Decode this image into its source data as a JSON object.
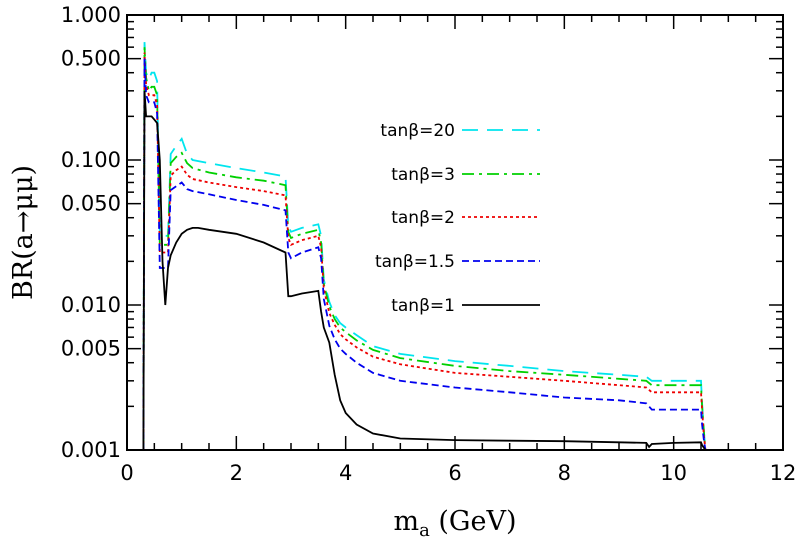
{
  "chart_data": {
    "type": "line",
    "xlabel": "m_a (GeV)",
    "xlabel_main": "m",
    "xlabel_sub": "a",
    "xlabel_unit": " (GeV)",
    "ylabel": "BR(a→μμ)",
    "xlim": [
      0,
      12
    ],
    "ylim": [
      0.001,
      1.0
    ],
    "yscale": "log",
    "grid": false,
    "legend_position": "upper-right",
    "x_ticks": [
      {
        "value": 0,
        "label": "0"
      },
      {
        "value": 2,
        "label": "2"
      },
      {
        "value": 4,
        "label": "4"
      },
      {
        "value": 6,
        "label": "6"
      },
      {
        "value": 8,
        "label": "8"
      },
      {
        "value": 10,
        "label": "10"
      },
      {
        "value": 12,
        "label": "12"
      }
    ],
    "y_ticks": [
      {
        "value": 0.001,
        "label": "0.001"
      },
      {
        "value": 0.005,
        "label": "0.005"
      },
      {
        "value": 0.01,
        "label": "0.010"
      },
      {
        "value": 0.05,
        "label": "0.050"
      },
      {
        "value": 0.1,
        "label": "0.100"
      },
      {
        "value": 0.5,
        "label": "0.500"
      },
      {
        "value": 1.0,
        "label": "1.000"
      }
    ],
    "series": [
      {
        "name": "tanβ=20",
        "color": "#00e5ee",
        "dash": "long-dash",
        "x": [
          0.3,
          0.32,
          0.35,
          0.4,
          0.45,
          0.5,
          0.55,
          0.6,
          0.7,
          0.75,
          0.8,
          0.9,
          1.0,
          1.1,
          1.2,
          1.5,
          2.0,
          2.5,
          2.9,
          2.95,
          3.0,
          3.2,
          3.5,
          3.55,
          3.6,
          3.7,
          3.8,
          3.9,
          4.0,
          4.2,
          4.5,
          5.0,
          6.0,
          7.0,
          8.0,
          9.0,
          9.5,
          9.6,
          10.0,
          10.4,
          10.5,
          10.52,
          10.55,
          10.58
        ],
        "y": [
          0.001,
          0.65,
          0.4,
          0.36,
          0.4,
          0.4,
          0.35,
          0.03,
          0.03,
          0.03,
          0.11,
          0.125,
          0.14,
          0.11,
          0.1,
          0.095,
          0.088,
          0.082,
          0.077,
          0.035,
          0.032,
          0.034,
          0.036,
          0.03,
          0.015,
          0.0105,
          0.0085,
          0.0075,
          0.007,
          0.0062,
          0.0052,
          0.0046,
          0.0041,
          0.0038,
          0.0035,
          0.0033,
          0.0032,
          0.003,
          0.003,
          0.003,
          0.003,
          0.0021,
          0.0014,
          0.001
        ]
      },
      {
        "name": "tanβ=3",
        "color": "#00d000",
        "dash": "dash-dot",
        "x": [
          0.3,
          0.32,
          0.35,
          0.4,
          0.45,
          0.5,
          0.55,
          0.6,
          0.7,
          0.75,
          0.8,
          0.9,
          1.0,
          1.1,
          1.2,
          1.5,
          2.0,
          2.5,
          2.9,
          2.95,
          3.0,
          3.2,
          3.5,
          3.55,
          3.6,
          3.7,
          3.8,
          3.9,
          4.0,
          4.2,
          4.5,
          5.0,
          6.0,
          7.0,
          8.0,
          9.0,
          9.5,
          9.6,
          10.0,
          10.4,
          10.5,
          10.52,
          10.55,
          10.58
        ],
        "y": [
          0.001,
          0.6,
          0.37,
          0.3,
          0.32,
          0.32,
          0.28,
          0.026,
          0.026,
          0.026,
          0.095,
          0.105,
          0.112,
          0.095,
          0.088,
          0.082,
          0.076,
          0.072,
          0.067,
          0.032,
          0.029,
          0.031,
          0.033,
          0.027,
          0.014,
          0.0098,
          0.008,
          0.007,
          0.0065,
          0.0057,
          0.0049,
          0.0043,
          0.0038,
          0.0035,
          0.0033,
          0.0031,
          0.003,
          0.0028,
          0.0028,
          0.0028,
          0.0028,
          0.002,
          0.0014,
          0.001
        ]
      },
      {
        "name": "tanβ=2",
        "color": "#ee0000",
        "dash": "dotted",
        "x": [
          0.3,
          0.32,
          0.35,
          0.4,
          0.45,
          0.5,
          0.55,
          0.6,
          0.7,
          0.75,
          0.8,
          0.9,
          1.0,
          1.1,
          1.2,
          1.5,
          2.0,
          2.5,
          2.9,
          2.95,
          3.0,
          3.2,
          3.5,
          3.55,
          3.6,
          3.7,
          3.8,
          3.9,
          4.0,
          4.2,
          4.5,
          5.0,
          6.0,
          7.0,
          8.0,
          9.0,
          9.5,
          9.6,
          10.0,
          10.4,
          10.5,
          10.52,
          10.55,
          10.58
        ],
        "y": [
          0.001,
          0.55,
          0.33,
          0.28,
          0.28,
          0.28,
          0.24,
          0.023,
          0.023,
          0.023,
          0.078,
          0.085,
          0.09,
          0.079,
          0.074,
          0.07,
          0.065,
          0.061,
          0.057,
          0.029,
          0.026,
          0.028,
          0.03,
          0.025,
          0.013,
          0.0088,
          0.0073,
          0.0063,
          0.0058,
          0.0051,
          0.0044,
          0.0039,
          0.0034,
          0.0032,
          0.003,
          0.0028,
          0.0027,
          0.0025,
          0.0025,
          0.0025,
          0.0025,
          0.0019,
          0.0013,
          0.001
        ]
      },
      {
        "name": "tanβ=1.5",
        "color": "#0000ee",
        "dash": "short-dash",
        "x": [
          0.3,
          0.32,
          0.35,
          0.4,
          0.45,
          0.5,
          0.55,
          0.6,
          0.7,
          0.75,
          0.8,
          0.9,
          1.0,
          1.1,
          1.2,
          1.5,
          2.0,
          2.5,
          2.9,
          2.95,
          3.0,
          3.2,
          3.5,
          3.55,
          3.6,
          3.7,
          3.8,
          3.9,
          4.0,
          4.2,
          4.5,
          5.0,
          6.0,
          7.0,
          8.0,
          9.0,
          9.5,
          9.6,
          10.0,
          10.4,
          10.5,
          10.52,
          10.55,
          10.58
        ],
        "y": [
          0.001,
          0.5,
          0.28,
          0.25,
          0.25,
          0.25,
          0.21,
          0.018,
          0.018,
          0.018,
          0.062,
          0.066,
          0.07,
          0.063,
          0.061,
          0.058,
          0.053,
          0.049,
          0.045,
          0.023,
          0.021,
          0.023,
          0.025,
          0.021,
          0.011,
          0.0072,
          0.0058,
          0.005,
          0.0046,
          0.004,
          0.0034,
          0.003,
          0.0027,
          0.0025,
          0.0023,
          0.0022,
          0.0021,
          0.0019,
          0.0019,
          0.0019,
          0.0019,
          0.0015,
          0.0012,
          0.001
        ]
      },
      {
        "name": "tanβ=1",
        "color": "#000000",
        "dash": "solid",
        "x": [
          0.3,
          0.32,
          0.35,
          0.4,
          0.45,
          0.5,
          0.55,
          0.6,
          0.65,
          0.7,
          0.75,
          0.8,
          0.9,
          1.0,
          1.1,
          1.2,
          1.3,
          1.5,
          2.0,
          2.5,
          2.9,
          2.95,
          3.0,
          3.2,
          3.5,
          3.55,
          3.6,
          3.7,
          3.8,
          3.9,
          4.0,
          4.2,
          4.5,
          5.0,
          6.0,
          7.0,
          8.0,
          9.0,
          9.5,
          9.55,
          9.6,
          10.0,
          10.5,
          10.52,
          10.55,
          10.58
        ],
        "y": [
          0.001,
          0.3,
          0.2,
          0.2,
          0.2,
          0.19,
          0.18,
          0.1,
          0.02,
          0.01,
          0.018,
          0.022,
          0.027,
          0.031,
          0.033,
          0.034,
          0.034,
          0.033,
          0.031,
          0.027,
          0.023,
          0.0115,
          0.0115,
          0.012,
          0.0125,
          0.009,
          0.007,
          0.0055,
          0.0033,
          0.0022,
          0.0018,
          0.0015,
          0.0013,
          0.0012,
          0.00117,
          0.00116,
          0.00115,
          0.00113,
          0.00112,
          0.00105,
          0.0011,
          0.00112,
          0.00113,
          0.00108,
          0.00104,
          0.001
        ]
      }
    ]
  }
}
